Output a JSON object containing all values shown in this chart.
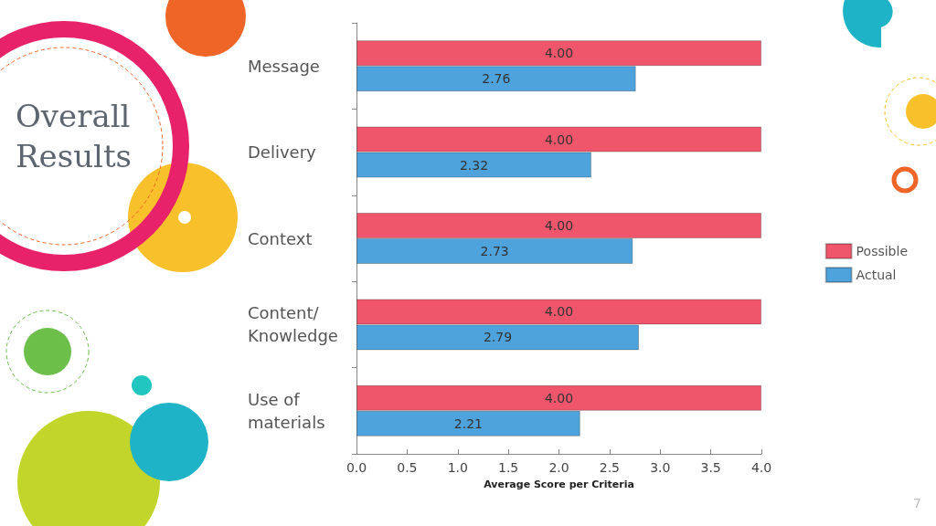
{
  "chart_data": {
    "type": "bar",
    "orientation": "horizontal",
    "title": "Overall Results",
    "xlabel": "Average Score per Criteria",
    "categories": [
      "Message",
      "Delivery",
      "Context",
      "Content/ Knowledge",
      "Use of materials"
    ],
    "series": [
      {
        "name": "Possible",
        "color": "#f0566b",
        "values": [
          4.0,
          4.0,
          4.0,
          4.0,
          4.0
        ],
        "value_labels": [
          "4.00",
          "4.00",
          "4.00",
          "4.00",
          "4.00"
        ]
      },
      {
        "name": "Actual",
        "color": "#4fa3dc",
        "values": [
          2.76,
          2.32,
          2.73,
          2.79,
          2.21
        ],
        "value_labels": [
          "2.76",
          "2.32",
          "2.73",
          "2.79",
          "2.21"
        ]
      }
    ],
    "xlim": [
      0,
      4
    ],
    "xticks": [
      {
        "value": 0,
        "label": "0.0"
      },
      0.5,
      {
        "value": 1,
        "label": "1.0"
      },
      1.5,
      {
        "value": 2,
        "label": "2.0"
      },
      2.5,
      {
        "value": 3,
        "label": "3.0"
      },
      3.5,
      {
        "value": 4,
        "label": "4.0"
      }
    ],
    "grid": false,
    "legend": "right",
    "annotations": [
      "7"
    ]
  }
}
